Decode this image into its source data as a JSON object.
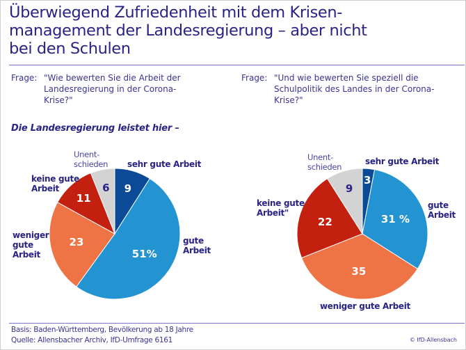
{
  "title": {
    "line1": "Überwiegend Zufriedenheit mit dem Krisen-",
    "line2": "management der Landesregierung – aber nicht",
    "line3": "bei den Schulen"
  },
  "questions": {
    "left": {
      "label": "Frage:",
      "line1": "\"Wie bewerten Sie die Arbeit der",
      "line2": "Landesregierung in der Corona-",
      "line3": "Krise?\""
    },
    "right": {
      "label": "Frage:",
      "line1": "\"Und wie bewerten Sie speziell die",
      "line2": "Schulpolitik des Landes in der Corona-",
      "line3": "Krise?\""
    }
  },
  "subheading": "Die Landesregierung leistet hier –",
  "colors": {
    "sehr_gute": "#0b4a96",
    "gute": "#2393d2",
    "weniger_gute": "#ee7345",
    "keine_gute": "#c3200f",
    "unentschieden": "#d3d3d3",
    "text": "#2a2387"
  },
  "chart_data": [
    {
      "type": "pie",
      "title": "Arbeit der Landesregierung in der Corona-Krise",
      "start": "12 o'clock",
      "direction": "clockwise",
      "slices": [
        {
          "key": "sehr_gute",
          "label": "sehr gute Arbeit",
          "value": 9,
          "value_label": "9"
        },
        {
          "key": "gute",
          "label": "gute Arbeit",
          "value": 51,
          "value_label": "51%"
        },
        {
          "key": "weniger_gute",
          "label": "weniger gute Arbeit",
          "value": 23,
          "value_label": "23"
        },
        {
          "key": "keine_gute",
          "label": "keine gute Arbeit",
          "value": 11,
          "value_label": "11"
        },
        {
          "key": "unentschieden",
          "label": "Unentschieden",
          "value": 6,
          "value_label": "6"
        }
      ],
      "labels": {
        "sehr_gute": [
          "sehr gute Arbeit"
        ],
        "gute": [
          "gute",
          "Arbeit"
        ],
        "weniger_gute": [
          "weniger",
          "gute",
          "Arbeit"
        ],
        "keine_gute": [
          "keine gute",
          "Arbeit"
        ],
        "unentschieden": [
          "Unent-",
          "schieden"
        ]
      }
    },
    {
      "type": "pie",
      "title": "Schulpolitik des Landes in der Corona-Krise",
      "start": "12 o'clock",
      "direction": "clockwise",
      "slices": [
        {
          "key": "sehr_gute",
          "label": "sehr gute Arbeit",
          "value": 3,
          "value_label": "3"
        },
        {
          "key": "gute",
          "label": "gute Arbeit",
          "value": 31,
          "value_label": "31 %"
        },
        {
          "key": "weniger_gute",
          "label": "weniger gute Arbeit",
          "value": 35,
          "value_label": "35"
        },
        {
          "key": "keine_gute",
          "label": "keine gute Arbeit\"",
          "value": 22,
          "value_label": "22"
        },
        {
          "key": "unentschieden",
          "label": "Unentschieden",
          "value": 9,
          "value_label": "9"
        }
      ],
      "labels": {
        "sehr_gute": [
          "sehr gute Arbeit"
        ],
        "gute": [
          "gute",
          "Arbeit"
        ],
        "weniger_gute": [
          "weniger gute Arbeit"
        ],
        "keine_gute": [
          "keine gute",
          "Arbeit\""
        ],
        "unentschieden": [
          "Unent-",
          "schieden"
        ]
      }
    }
  ],
  "footer": {
    "basis": "Basis: Baden-Württemberg, Bevölkerung ab 18 Jahre",
    "quelle": "Quelle: Allensbacher Archiv, IfD-Umfrage 6161",
    "copyright": "© IfD-Allensbach"
  }
}
